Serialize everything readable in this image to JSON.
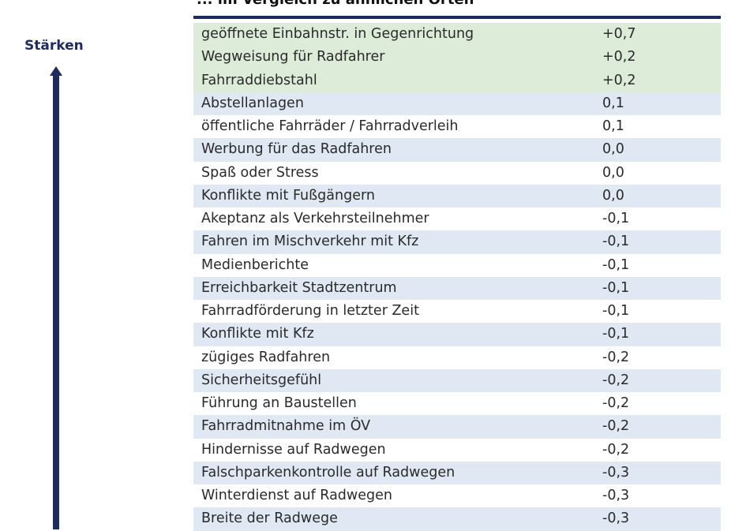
{
  "heading": "... im Vergleich zu ähnlichen Orten",
  "axis_label": "Stärken",
  "colors": {
    "navy": "#1d2b5e",
    "highlight_row": "#dcecd8",
    "striped_row": "#dfe8f3",
    "plain_row": "#ffffff"
  },
  "rows": [
    {
      "label": "geöffnete Einbahnstr. in Gegenrichtung",
      "value": "+0,7",
      "style": "highlight"
    },
    {
      "label": "Wegweisung für Radfahrer",
      "value": "+0,2",
      "style": "highlight"
    },
    {
      "label": "Fahrraddiebstahl",
      "value": "+0,2",
      "style": "highlight"
    },
    {
      "label": "Abstellanlagen",
      "value": "0,1",
      "style": "striped"
    },
    {
      "label": "öffentliche Fahrräder / Fahrradverleih",
      "value": "0,1",
      "style": "plain"
    },
    {
      "label": "Werbung für das Radfahren",
      "value": "0,0",
      "style": "striped"
    },
    {
      "label": "Spaß oder Stress",
      "value": "0,0",
      "style": "plain"
    },
    {
      "label": "Konflikte mit Fußgängern",
      "value": "0,0",
      "style": "striped"
    },
    {
      "label": "Akeptanz als Verkehrsteilnehmer",
      "value": "-0,1",
      "style": "plain"
    },
    {
      "label": "Fahren im Mischverkehr mit Kfz",
      "value": "-0,1",
      "style": "striped"
    },
    {
      "label": "Medienberichte",
      "value": "-0,1",
      "style": "plain"
    },
    {
      "label": "Erreichbarkeit Stadtzentrum",
      "value": "-0,1",
      "style": "striped"
    },
    {
      "label": "Fahrradförderung in letzter Zeit",
      "value": "-0,1",
      "style": "plain"
    },
    {
      "label": "Konflikte mit Kfz",
      "value": "-0,1",
      "style": "striped"
    },
    {
      "label": "zügiges Radfahren",
      "value": "-0,2",
      "style": "plain"
    },
    {
      "label": "Sicherheitsgefühl",
      "value": "-0,2",
      "style": "striped"
    },
    {
      "label": "Führung an Baustellen",
      "value": "-0,2",
      "style": "plain"
    },
    {
      "label": "Fahrradmitnahme im ÖV",
      "value": "-0,2",
      "style": "striped"
    },
    {
      "label": "Hindernisse auf Radwegen",
      "value": "-0,2",
      "style": "plain"
    },
    {
      "label": "Falschparkenkontrolle auf Radwegen",
      "value": "-0,3",
      "style": "striped"
    },
    {
      "label": "Winterdienst auf Radwegen",
      "value": "-0,3",
      "style": "plain"
    },
    {
      "label": "Breite der Radwege",
      "value": "-0,3",
      "style": "striped"
    }
  ]
}
